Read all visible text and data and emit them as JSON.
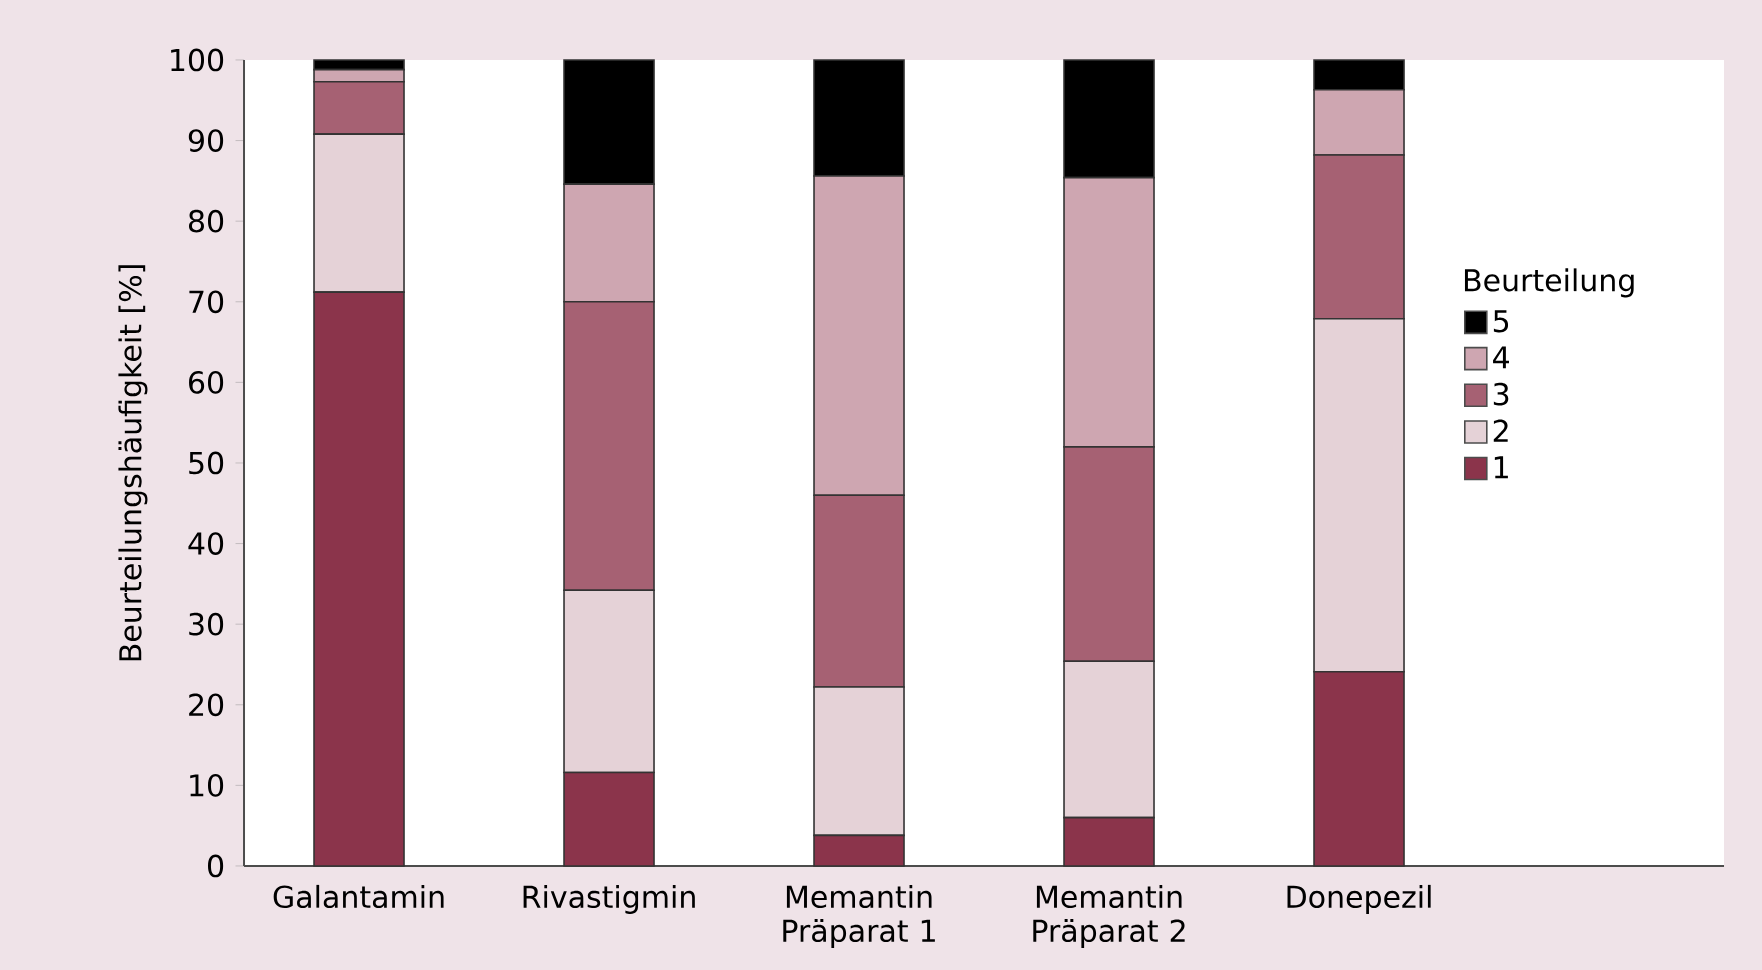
{
  "chart_data": {
    "type": "bar",
    "stacked": true,
    "ylabel": "Beurteilungshäufigkeit [%]",
    "legend_title": "Beurteilung",
    "legend": "right",
    "categories": [
      "Galantamin",
      "Rivastigmin",
      "Memantin Präparat 1",
      "Memantin Präparat 2",
      "Donepezil"
    ],
    "ylim": [
      0,
      100
    ],
    "yticks": [
      0,
      10,
      20,
      30,
      40,
      50,
      60,
      70,
      80,
      90,
      100
    ],
    "grid": false,
    "series": [
      {
        "name": "1",
        "color": "#8b344b",
        "values": [
          71.2,
          11.6,
          3.8,
          6.0,
          24.1
        ]
      },
      {
        "name": "2",
        "color": "#e5d2d7",
        "values": [
          19.6,
          22.6,
          18.4,
          19.4,
          43.8
        ]
      },
      {
        "name": "3",
        "color": "#a66173",
        "values": [
          6.5,
          35.8,
          23.8,
          26.6,
          20.3
        ]
      },
      {
        "name": "4",
        "color": "#cea6b1",
        "values": [
          1.5,
          14.6,
          39.6,
          33.4,
          8.1
        ]
      },
      {
        "name": "5",
        "color": "#000000",
        "values": [
          1.2,
          15.4,
          14.4,
          14.6,
          3.7
        ]
      }
    ]
  }
}
